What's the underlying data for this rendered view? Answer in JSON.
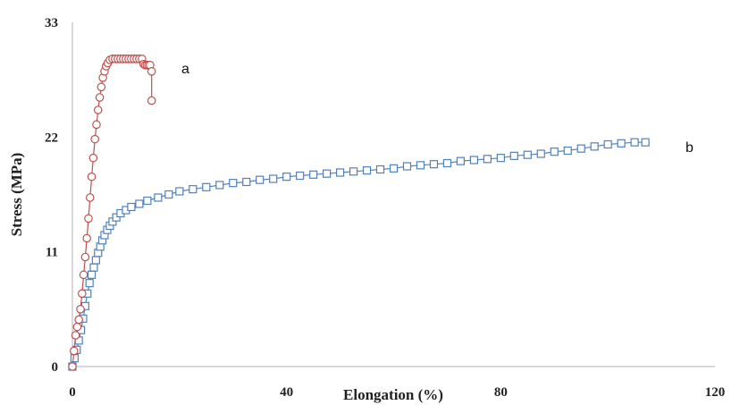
{
  "chart_data": {
    "type": "scatter",
    "title": "",
    "xlabel": "Elongation (%)",
    "ylabel": "Stress (MPa)",
    "xlim": [
      0,
      120
    ],
    "ylim": [
      0,
      33
    ],
    "xticks": [
      "0",
      "40",
      "80",
      "120"
    ],
    "xtick_values": [
      0,
      40,
      80,
      120
    ],
    "yticks": [
      "0",
      "11",
      "22",
      "33"
    ],
    "ytick_values": [
      0,
      11,
      22,
      33
    ],
    "grid": false,
    "legend": "none",
    "series": [
      {
        "name": "a",
        "marker": "circle",
        "color": "#c0504d",
        "x": [
          0,
          0.3,
          0.6,
          0.9,
          1.2,
          1.5,
          1.8,
          2.1,
          2.4,
          2.7,
          3.0,
          3.3,
          3.6,
          3.9,
          4.2,
          4.5,
          4.8,
          5.1,
          5.4,
          5.7,
          6.0,
          6.3,
          6.6,
          7.0,
          7.5,
          8.0,
          8.5,
          9.0,
          9.5,
          10.0,
          10.5,
          11.0,
          11.5,
          12.0,
          12.5,
          13.0,
          13.3,
          13.6,
          13.9,
          14.2,
          14.5,
          14.8,
          14.8
        ],
        "y": [
          0,
          1.5,
          3.0,
          3.8,
          4.5,
          5.5,
          7.0,
          8.8,
          10.5,
          12.3,
          14.2,
          16.2,
          18.2,
          20.0,
          21.8,
          23.2,
          24.6,
          25.8,
          26.8,
          27.7,
          28.3,
          28.8,
          29.1,
          29.4,
          29.5,
          29.5,
          29.5,
          29.5,
          29.5,
          29.5,
          29.5,
          29.5,
          29.5,
          29.5,
          29.5,
          29.5,
          29.0,
          28.9,
          28.9,
          28.9,
          28.9,
          28.3,
          25.5
        ]
      },
      {
        "name": "b",
        "marker": "square",
        "color": "#4f81bd",
        "x": [
          0,
          0.4,
          0.8,
          1.2,
          1.6,
          2.0,
          2.4,
          2.8,
          3.2,
          3.6,
          4.0,
          4.4,
          4.8,
          5.2,
          5.6,
          6.0,
          6.5,
          7.0,
          7.5,
          8.2,
          9.0,
          10.0,
          11.0,
          12.5,
          14.0,
          16.0,
          18.0,
          20.0,
          22.5,
          25.0,
          27.5,
          30.0,
          32.5,
          35.0,
          37.5,
          40.0,
          42.5,
          45.0,
          47.5,
          50.0,
          52.5,
          55.0,
          57.5,
          60.0,
          62.5,
          65.0,
          67.5,
          70.0,
          72.5,
          75.0,
          77.5,
          80.0,
          82.5,
          85.0,
          87.5,
          90.0,
          92.5,
          95.0,
          97.5,
          100.0,
          102.5,
          105.0,
          107.0
        ],
        "y": [
          0,
          0.8,
          1.6,
          2.5,
          3.5,
          4.6,
          5.8,
          7.0,
          8.0,
          8.8,
          9.5,
          10.2,
          10.9,
          11.5,
          12.1,
          12.6,
          13.1,
          13.5,
          13.9,
          14.3,
          14.7,
          15.0,
          15.3,
          15.6,
          15.9,
          16.2,
          16.5,
          16.8,
          17.0,
          17.2,
          17.4,
          17.6,
          17.7,
          17.9,
          18.0,
          18.2,
          18.3,
          18.4,
          18.5,
          18.6,
          18.7,
          18.8,
          18.9,
          19.0,
          19.2,
          19.3,
          19.4,
          19.5,
          19.7,
          19.8,
          19.9,
          20.0,
          20.2,
          20.3,
          20.4,
          20.6,
          20.7,
          20.9,
          21.1,
          21.3,
          21.4,
          21.5,
          21.5
        ]
      }
    ]
  }
}
